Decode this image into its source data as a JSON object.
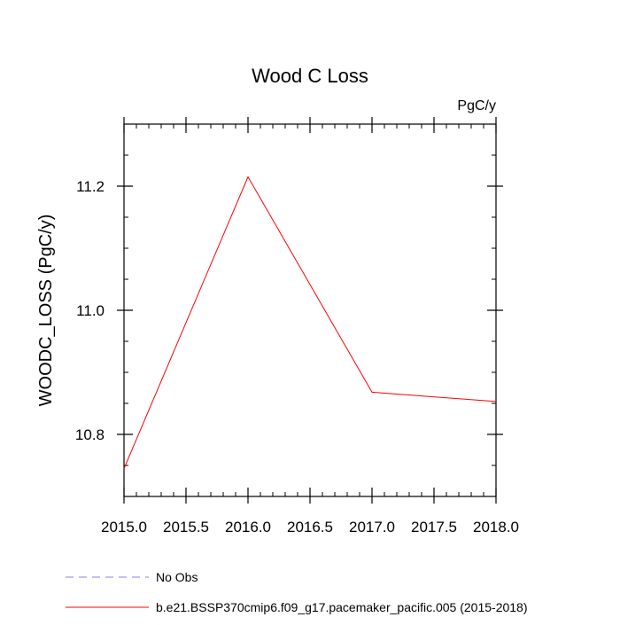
{
  "chart_data": {
    "type": "line",
    "title": "Wood C Loss",
    "units_label": "PgC/y",
    "ylabel": "WOODC_LOSS  (PgC/y)",
    "xlabel": "",
    "xlim": [
      2015.0,
      2018.0
    ],
    "ylim": [
      10.7,
      11.3
    ],
    "x_ticks": [
      2015.0,
      2015.5,
      2016.0,
      2016.5,
      2017.0,
      2017.5,
      2018.0
    ],
    "x_tick_labels": [
      "2015.0",
      "2015.5",
      "2016.0",
      "2016.5",
      "2017.0",
      "2017.5",
      "2018.0"
    ],
    "y_ticks": [
      10.8,
      11.0,
      11.2
    ],
    "y_tick_labels": [
      "10.8",
      "11.0",
      "11.2"
    ],
    "grid": false,
    "legend_placement": "bottom-left",
    "series": [
      {
        "name": "b.e21.BSSP370cmip6.f09_g17.pacemaker_pacific.005 (2015-2018)",
        "color": "#ff0000",
        "dash": "solid",
        "x": [
          2015.0,
          2016.0,
          2017.0,
          2018.0
        ],
        "values": [
          10.745,
          11.215,
          10.868,
          10.853
        ]
      }
    ],
    "legend": [
      {
        "label": "No Obs",
        "color": "#8080ff",
        "dash": "dashed"
      },
      {
        "label": "b.e21.BSSP370cmip6.f09_g17.pacemaker_pacific.005 (2015-2018)",
        "color": "#ff0000",
        "dash": "solid"
      }
    ]
  }
}
